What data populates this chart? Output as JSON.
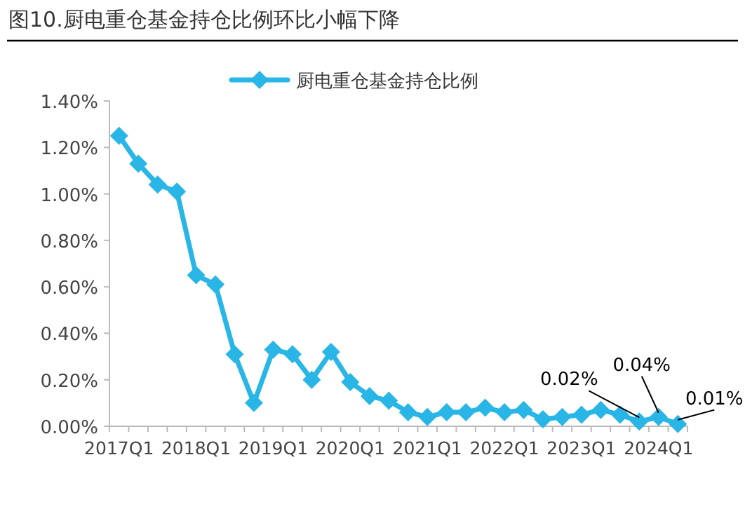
{
  "chart_data": {
    "type": "line",
    "title": "图10.厨电重仓基金持仓比例环比小幅下降",
    "categories": [
      "2017Q1",
      null,
      null,
      null,
      "2018Q1",
      null,
      null,
      null,
      "2019Q1",
      null,
      null,
      null,
      "2020Q1",
      null,
      null,
      null,
      "2021Q1",
      null,
      null,
      null,
      "2022Q1",
      null,
      null,
      null,
      "2023Q1",
      null,
      null,
      null,
      "2024Q1",
      null
    ],
    "series": [
      {
        "name": "厨电重仓基金持仓比例",
        "color": "#29b6e6",
        "values": [
          1.25,
          1.13,
          1.04,
          1.01,
          0.65,
          0.61,
          0.31,
          0.1,
          0.33,
          0.31,
          0.2,
          0.32,
          0.19,
          0.13,
          0.11,
          0.06,
          0.04,
          0.06,
          0.06,
          0.08,
          0.06,
          0.07,
          0.03,
          0.04,
          0.05,
          0.07,
          0.05,
          0.02,
          0.04,
          0.01
        ],
        "value_labels": [
          null,
          null,
          null,
          null,
          null,
          null,
          null,
          null,
          null,
          null,
          null,
          null,
          null,
          null,
          null,
          null,
          null,
          null,
          null,
          null,
          null,
          null,
          null,
          null,
          null,
          null,
          null,
          "0.02%",
          "0.04%",
          "0.01%"
        ]
      }
    ],
    "ylim": [
      0,
      1.4
    ],
    "yticks": [
      {
        "value": 0,
        "label": "0.00%"
      },
      {
        "value": 0.2,
        "label": "0.20%"
      },
      {
        "value": 0.4,
        "label": "0.40%"
      },
      {
        "value": 0.6,
        "label": "0.60%"
      },
      {
        "value": 0.8,
        "label": "0.80%"
      },
      {
        "value": 1.0,
        "label": "1.00%"
      },
      {
        "value": 1.2,
        "label": "1.20%"
      },
      {
        "value": 1.4,
        "label": "1.40%"
      }
    ],
    "legend": "top",
    "marker": "diamond",
    "line_style": "solid",
    "grid": false
  }
}
